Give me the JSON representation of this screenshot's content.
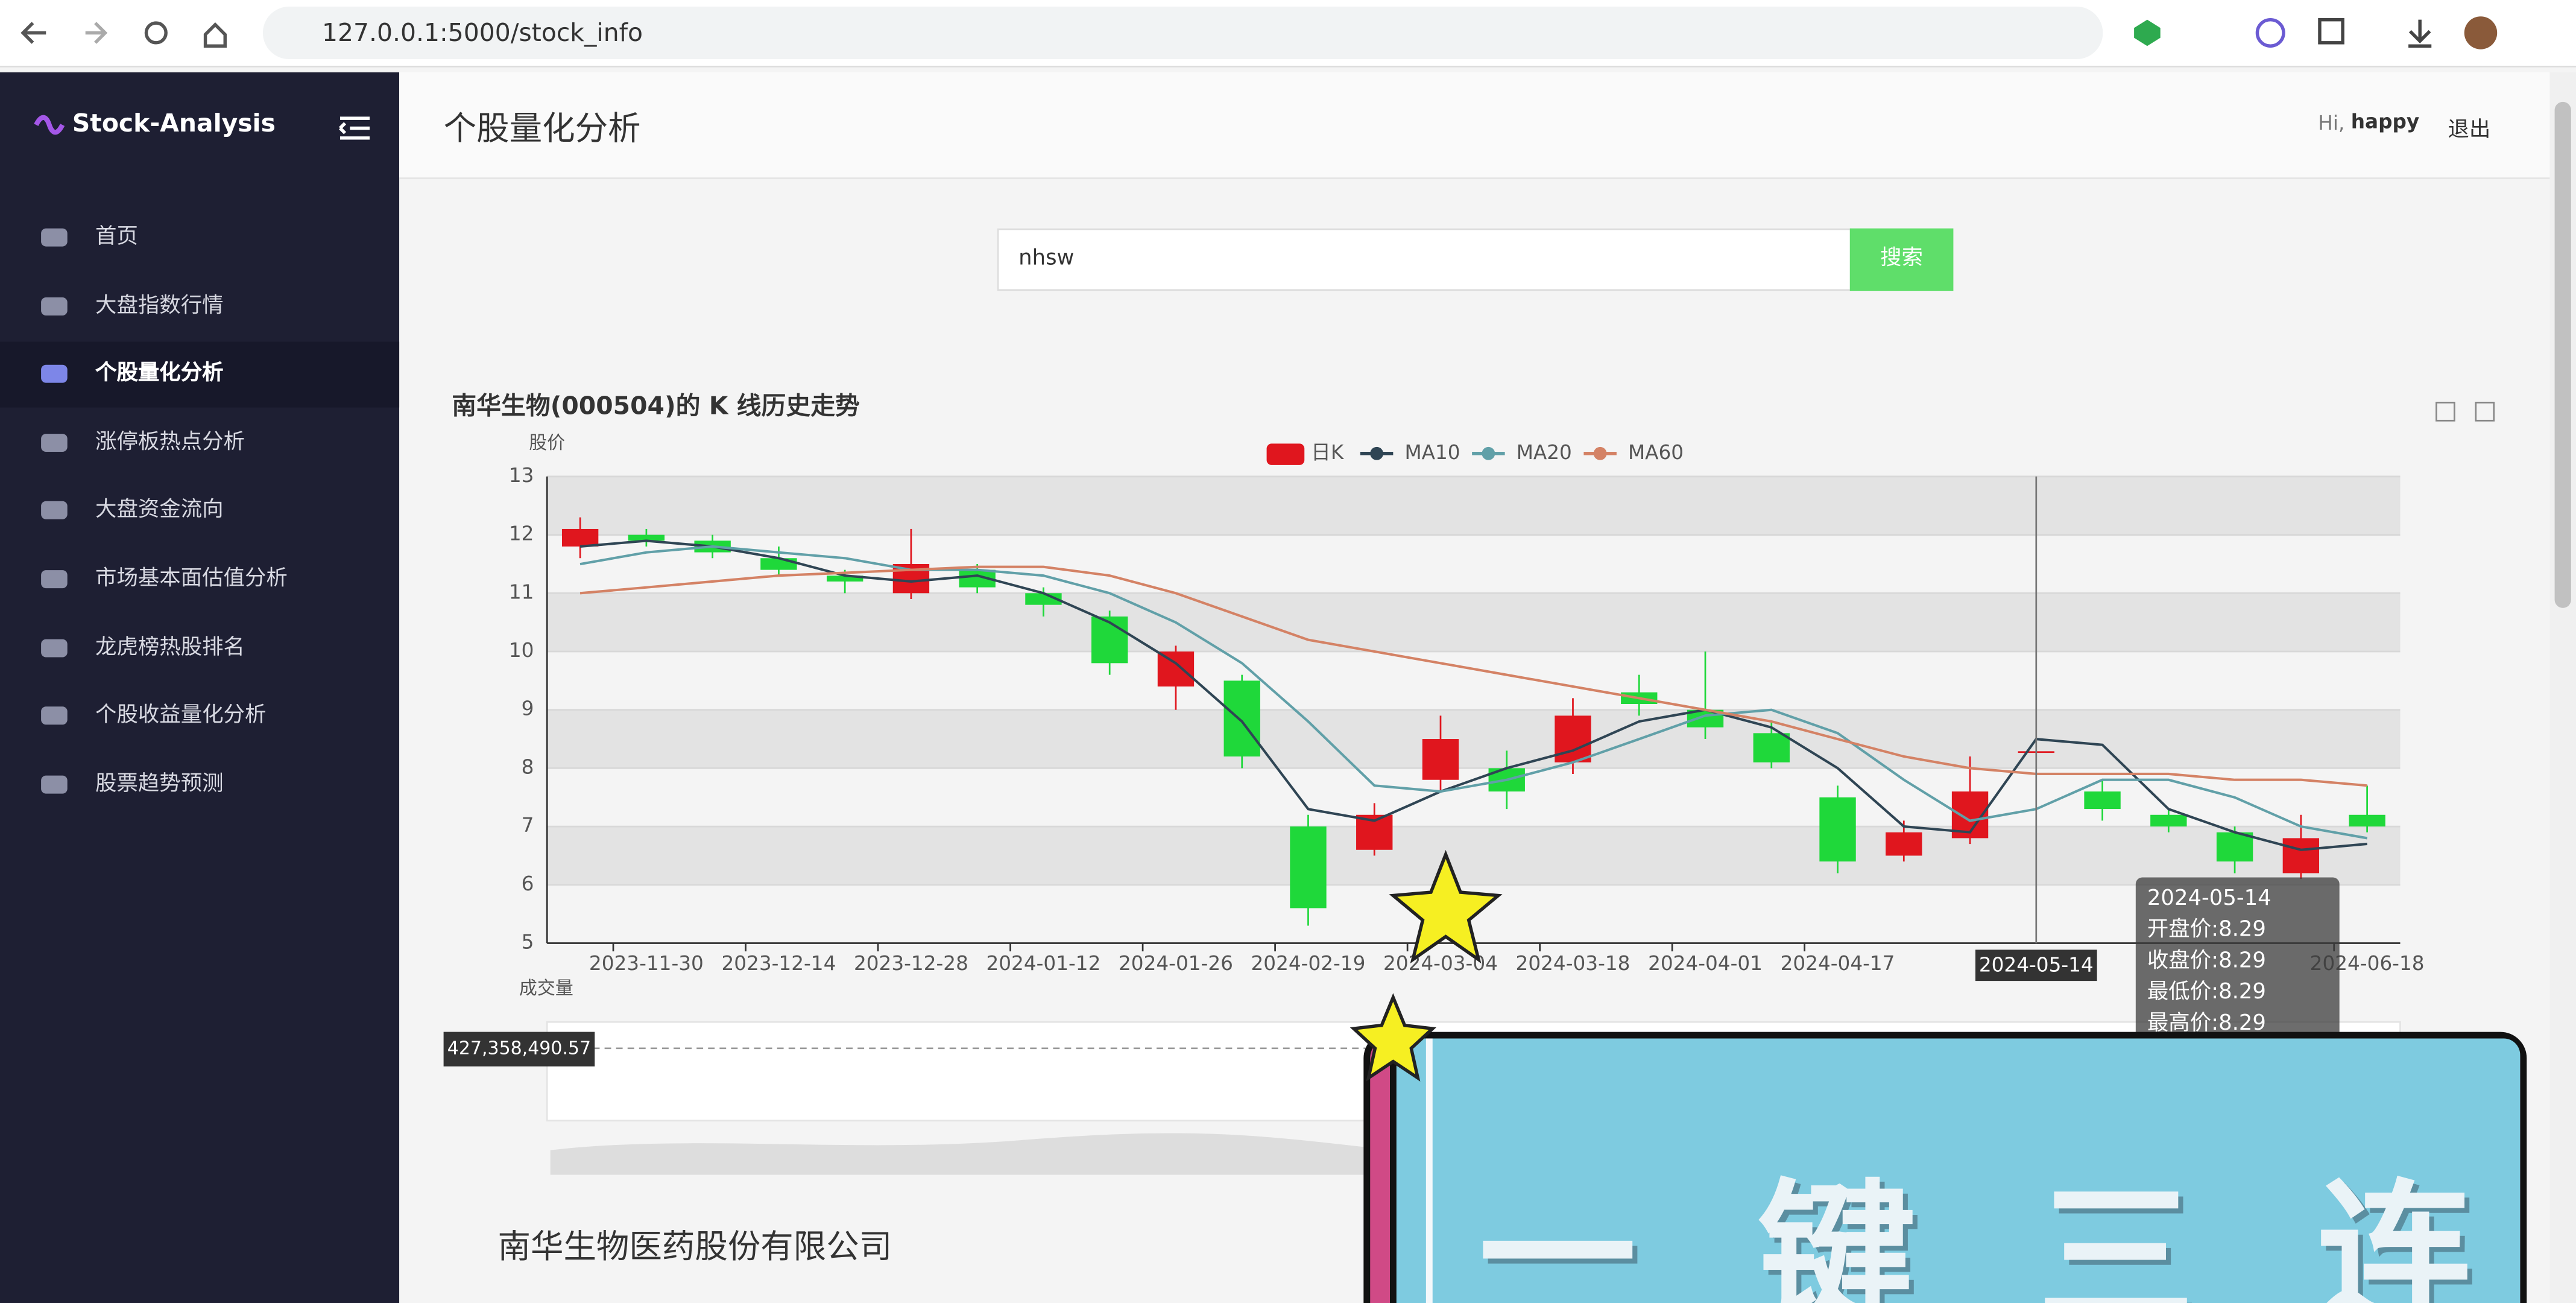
{
  "browser": {
    "url": "127.0.0.1:5000/stock_info"
  },
  "sidebar": {
    "brand": "Stock-Analysis",
    "menu": [
      "首页",
      "大盘指数行情",
      "个股量化分析",
      "涨停板热点分析",
      "大盘资金流向",
      "市场基本面估值分析",
      "龙虎榜热股排名",
      "个股收益量化分析",
      "股票趋势预测"
    ],
    "active": 2
  },
  "header": {
    "title": "个股量化分析",
    "greeting": "Hi,",
    "user": "happy",
    "logout": "退出"
  },
  "search": {
    "value": "nhsw",
    "button": "搜索"
  },
  "chart_data": {
    "type": "candlestick",
    "title": "南华生物(000504)的 K 线历史走势",
    "y_label": "股价",
    "categories": [
      null,
      "2023-11-30",
      null,
      "2023-12-14",
      null,
      "2023-12-28",
      null,
      "2024-01-12",
      null,
      "2024-01-26",
      null,
      "2024-02-19",
      null,
      "2024-03-04",
      null,
      "2024-03-18",
      null,
      "2024-04-01",
      null,
      "2024-04-17",
      null,
      null,
      null,
      null,
      null,
      null,
      null,
      "2024-06-18"
    ],
    "candles": {
      "name": "日K",
      "up_color": "#e0161e",
      "down_color": "#1fd83a",
      "open": [
        11.8,
        12.0,
        11.9,
        11.6,
        11.3,
        11.0,
        11.4,
        11.0,
        10.6,
        9.4,
        9.5,
        7.0,
        6.6,
        7.8,
        8.0,
        8.1,
        9.3,
        9.0,
        8.6,
        7.5,
        6.5,
        6.8,
        8.29,
        7.6,
        7.2,
        6.9,
        6.2,
        7.2
      ],
      "close": [
        12.1,
        11.9,
        11.7,
        11.4,
        11.2,
        11.5,
        11.1,
        10.8,
        9.8,
        10.0,
        8.2,
        5.6,
        7.2,
        8.5,
        7.6,
        8.9,
        9.1,
        8.7,
        8.1,
        6.4,
        6.9,
        7.6,
        8.29,
        7.3,
        7.0,
        6.4,
        6.8,
        7.0
      ],
      "low": [
        11.6,
        11.8,
        11.6,
        11.3,
        11.0,
        10.9,
        11.0,
        10.6,
        9.6,
        9.0,
        8.0,
        5.3,
        6.5,
        7.6,
        7.3,
        7.9,
        8.9,
        8.5,
        8.0,
        6.2,
        6.4,
        6.7,
        8.29,
        7.1,
        6.9,
        6.2,
        6.1,
        6.9
      ],
      "high": [
        12.3,
        12.1,
        12.0,
        11.8,
        11.4,
        12.1,
        11.5,
        11.1,
        10.7,
        10.1,
        9.6,
        7.2,
        7.4,
        8.9,
        8.3,
        9.2,
        9.6,
        10.0,
        8.8,
        7.7,
        7.1,
        8.2,
        8.29,
        7.8,
        7.3,
        7.0,
        7.2,
        7.7
      ]
    },
    "series": [
      {
        "name": "MA10",
        "color": "#2f4554",
        "values": [
          11.8,
          11.9,
          11.8,
          11.6,
          11.3,
          11.2,
          11.3,
          11.0,
          10.5,
          9.8,
          8.8,
          7.3,
          7.1,
          7.6,
          8.0,
          8.3,
          8.8,
          9.0,
          8.7,
          8.0,
          7.0,
          6.9,
          8.5,
          8.4,
          7.3,
          6.9,
          6.6,
          6.7
        ]
      },
      {
        "name": "MA20",
        "color": "#61a0a8",
        "values": [
          11.5,
          11.7,
          11.8,
          11.7,
          11.6,
          11.4,
          11.4,
          11.3,
          11.0,
          10.5,
          9.8,
          8.8,
          7.7,
          7.6,
          7.8,
          8.1,
          8.5,
          8.9,
          9.0,
          8.6,
          7.8,
          7.1,
          7.3,
          7.8,
          7.8,
          7.5,
          7.0,
          6.8
        ]
      },
      {
        "name": "MA60",
        "color": "#d48265",
        "values": [
          11.0,
          11.1,
          11.2,
          11.3,
          11.35,
          11.4,
          11.45,
          11.45,
          11.3,
          11.0,
          10.6,
          10.2,
          10.0,
          9.8,
          9.6,
          9.4,
          9.2,
          9.0,
          8.8,
          8.5,
          8.2,
          8.0,
          7.9,
          7.9,
          7.9,
          7.8,
          7.8,
          7.7
        ]
      }
    ],
    "ylim": [
      5,
      13
    ],
    "yticks": [
      5,
      6,
      7,
      8,
      9,
      10,
      11,
      12,
      13
    ],
    "split_area": true,
    "pointer": {
      "index": 22,
      "label": "2024-05-14"
    },
    "tooltip": {
      "title": "2024-05-14",
      "rows": [
        {
          "label": "开盘价:",
          "value": 8.29
        },
        {
          "label": "收盘价:",
          "value": 8.29
        },
        {
          "label": "最低价:",
          "value": 8.29
        },
        {
          "label": "最高价:",
          "value": 8.29
        }
      ]
    },
    "volume": {
      "label": "成交量",
      "pointer_label": "427,358,490.57"
    }
  },
  "company": {
    "name": "南华生物医药股份有限公司"
  },
  "overlay": {
    "text": [
      "一",
      "键",
      "三",
      "连"
    ]
  }
}
